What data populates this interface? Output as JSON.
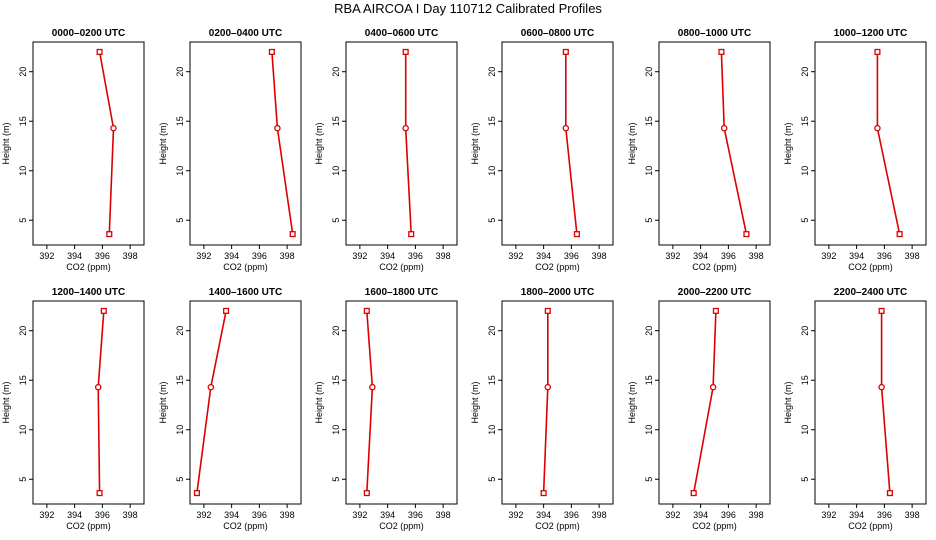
{
  "title": "RBA AIRCOA I  Day 110712  Calibrated Profiles",
  "colors": {
    "profile": "#dd0000",
    "axis": "#000000",
    "background": "#ffffff"
  },
  "chart_data": [
    {
      "type": "line",
      "title": "0000–0200 UTC",
      "xlabel": "CO2 (ppm)",
      "ylabel": "Height (m)",
      "xlim": [
        391,
        399
      ],
      "ylim": [
        2.5,
        23
      ],
      "xticks": [
        392,
        394,
        396,
        398
      ],
      "yticks": [
        5,
        10,
        15,
        20
      ],
      "grid": false,
      "series": [
        {
          "x": [
            395.8,
            396.8,
            396.5
          ],
          "y": [
            22,
            14.3,
            3.6
          ]
        }
      ]
    },
    {
      "type": "line",
      "title": "0200–0400 UTC",
      "xlabel": "CO2 (ppm)",
      "ylabel": "Height (m)",
      "xlim": [
        391,
        399
      ],
      "ylim": [
        2.5,
        23
      ],
      "xticks": [
        392,
        394,
        396,
        398
      ],
      "yticks": [
        5,
        10,
        15,
        20
      ],
      "grid": false,
      "series": [
        {
          "x": [
            396.9,
            397.3,
            398.4
          ],
          "y": [
            22,
            14.3,
            3.6
          ]
        }
      ]
    },
    {
      "type": "line",
      "title": "0400–0600 UTC",
      "xlabel": "CO2 (ppm)",
      "ylabel": "Height (m)",
      "xlim": [
        391,
        399
      ],
      "ylim": [
        2.5,
        23
      ],
      "xticks": [
        392,
        394,
        396,
        398
      ],
      "yticks": [
        5,
        10,
        15,
        20
      ],
      "grid": false,
      "series": [
        {
          "x": [
            395.3,
            395.3,
            395.7
          ],
          "y": [
            22,
            14.3,
            3.6
          ]
        }
      ]
    },
    {
      "type": "line",
      "title": "0600–0800 UTC",
      "xlabel": "CO2 (ppm)",
      "ylabel": "Height (m)",
      "xlim": [
        391,
        399
      ],
      "ylim": [
        2.5,
        23
      ],
      "xticks": [
        392,
        394,
        396,
        398
      ],
      "yticks": [
        5,
        10,
        15,
        20
      ],
      "grid": false,
      "series": [
        {
          "x": [
            395.6,
            395.6,
            396.4
          ],
          "y": [
            22,
            14.3,
            3.6
          ]
        }
      ]
    },
    {
      "type": "line",
      "title": "0800–1000 UTC",
      "xlabel": "CO2 (ppm)",
      "ylabel": "Height (m)",
      "xlim": [
        391,
        399
      ],
      "ylim": [
        2.5,
        23
      ],
      "xticks": [
        392,
        394,
        396,
        398
      ],
      "yticks": [
        5,
        10,
        15,
        20
      ],
      "grid": false,
      "series": [
        {
          "x": [
            395.5,
            395.7,
            397.3
          ],
          "y": [
            22,
            14.3,
            3.6
          ]
        }
      ]
    },
    {
      "type": "line",
      "title": "1000–1200 UTC",
      "xlabel": "CO2 (ppm)",
      "ylabel": "Height (m)",
      "xlim": [
        391,
        399
      ],
      "ylim": [
        2.5,
        23
      ],
      "xticks": [
        392,
        394,
        396,
        398
      ],
      "yticks": [
        5,
        10,
        15,
        20
      ],
      "grid": false,
      "series": [
        {
          "x": [
            395.5,
            395.5,
            397.1
          ],
          "y": [
            22,
            14.3,
            3.6
          ]
        }
      ]
    },
    {
      "type": "line",
      "title": "1200–1400 UTC",
      "xlabel": "CO2 (ppm)",
      "ylabel": "Height (m)",
      "xlim": [
        391,
        399
      ],
      "ylim": [
        2.5,
        23
      ],
      "xticks": [
        392,
        394,
        396,
        398
      ],
      "yticks": [
        5,
        10,
        15,
        20
      ],
      "grid": false,
      "series": [
        {
          "x": [
            396.1,
            395.7,
            395.8
          ],
          "y": [
            22,
            14.3,
            3.6
          ]
        }
      ]
    },
    {
      "type": "line",
      "title": "1400–1600 UTC",
      "xlabel": "CO2 (ppm)",
      "ylabel": "Height (m)",
      "xlim": [
        391,
        399
      ],
      "ylim": [
        2.5,
        23
      ],
      "xticks": [
        392,
        394,
        396,
        398
      ],
      "yticks": [
        5,
        10,
        15,
        20
      ],
      "grid": false,
      "series": [
        {
          "x": [
            393.6,
            392.5,
            391.5
          ],
          "y": [
            22,
            14.3,
            3.6
          ]
        }
      ]
    },
    {
      "type": "line",
      "title": "1600–1800 UTC",
      "xlabel": "CO2 (ppm)",
      "ylabel": "Height (m)",
      "xlim": [
        391,
        399
      ],
      "ylim": [
        2.5,
        23
      ],
      "xticks": [
        392,
        394,
        396,
        398
      ],
      "yticks": [
        5,
        10,
        15,
        20
      ],
      "grid": false,
      "series": [
        {
          "x": [
            392.5,
            392.9,
            392.5
          ],
          "y": [
            22,
            14.3,
            3.6
          ]
        }
      ]
    },
    {
      "type": "line",
      "title": "1800–2000 UTC",
      "xlabel": "CO2 (ppm)",
      "ylabel": "Height (m)",
      "xlim": [
        391,
        399
      ],
      "ylim": [
        2.5,
        23
      ],
      "xticks": [
        392,
        394,
        396,
        398
      ],
      "yticks": [
        5,
        10,
        15,
        20
      ],
      "grid": false,
      "series": [
        {
          "x": [
            394.3,
            394.3,
            394.0
          ],
          "y": [
            22,
            14.3,
            3.6
          ]
        }
      ]
    },
    {
      "type": "line",
      "title": "2000–2200 UTC",
      "xlabel": "CO2 (ppm)",
      "ylabel": "Height (m)",
      "xlim": [
        391,
        399
      ],
      "ylim": [
        2.5,
        23
      ],
      "xticks": [
        392,
        394,
        396,
        398
      ],
      "yticks": [
        5,
        10,
        15,
        20
      ],
      "grid": false,
      "series": [
        {
          "x": [
            395.1,
            394.9,
            393.5
          ],
          "y": [
            22,
            14.3,
            3.6
          ]
        }
      ]
    },
    {
      "type": "line",
      "title": "2200–2400 UTC",
      "xlabel": "CO2 (ppm)",
      "ylabel": "Height (m)",
      "xlim": [
        391,
        399
      ],
      "ylim": [
        2.5,
        23
      ],
      "xticks": [
        392,
        394,
        396,
        398
      ],
      "yticks": [
        5,
        10,
        15,
        20
      ],
      "grid": false,
      "series": [
        {
          "x": [
            395.8,
            395.8,
            396.4
          ],
          "y": [
            22,
            14.3,
            3.6
          ]
        }
      ]
    }
  ]
}
